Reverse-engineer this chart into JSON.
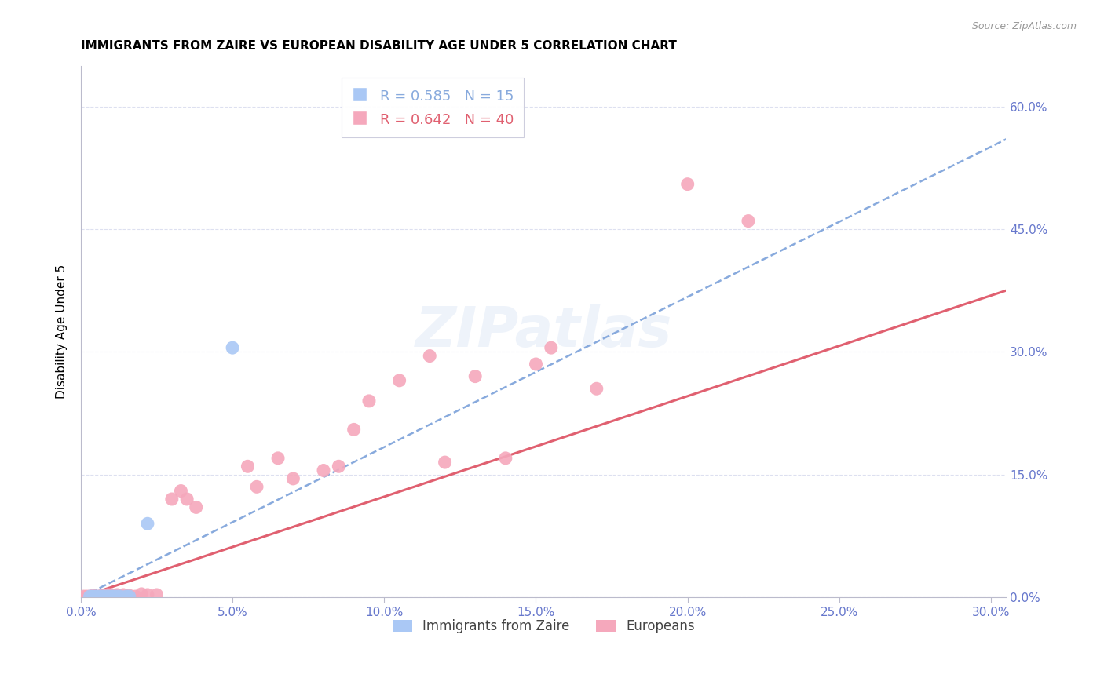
{
  "title": "IMMIGRANTS FROM ZAIRE VS EUROPEAN DISABILITY AGE UNDER 5 CORRELATION CHART",
  "source": "Source: ZipAtlas.com",
  "ylabel": "Disability Age Under 5",
  "xlim": [
    0.0,
    0.305
  ],
  "ylim": [
    0.0,
    0.65
  ],
  "yticks_right": [
    0.0,
    0.15,
    0.3,
    0.45,
    0.6
  ],
  "xticks": [
    0.0,
    0.05,
    0.1,
    0.15,
    0.2,
    0.25,
    0.3
  ],
  "grid_color": "#dde0f0",
  "background_color": "#ffffff",
  "zaire_color": "#aac8f5",
  "european_color": "#f5a8bc",
  "zaire_line_color": "#88aadd",
  "european_line_color": "#e06070",
  "zaire_R": 0.585,
  "zaire_N": 15,
  "european_R": 0.642,
  "european_N": 40,
  "legend_label_zaire": "Immigrants from Zaire",
  "legend_label_european": "Europeans",
  "tick_color": "#6677cc",
  "zaire_points": [
    [
      0.003,
      0.001
    ],
    [
      0.004,
      0.001
    ],
    [
      0.005,
      0.001
    ],
    [
      0.006,
      0.001
    ],
    [
      0.007,
      0.001
    ],
    [
      0.008,
      0.001
    ],
    [
      0.009,
      0.001
    ],
    [
      0.01,
      0.001
    ],
    [
      0.011,
      0.001
    ],
    [
      0.012,
      0.001
    ],
    [
      0.013,
      0.001
    ],
    [
      0.015,
      0.001
    ],
    [
      0.016,
      0.001
    ],
    [
      0.022,
      0.09
    ],
    [
      0.05,
      0.305
    ]
  ],
  "european_points": [
    [
      0.001,
      0.001
    ],
    [
      0.002,
      0.001
    ],
    [
      0.003,
      0.001
    ],
    [
      0.004,
      0.002
    ],
    [
      0.005,
      0.001
    ],
    [
      0.006,
      0.001
    ],
    [
      0.007,
      0.002
    ],
    [
      0.008,
      0.001
    ],
    [
      0.009,
      0.003
    ],
    [
      0.01,
      0.003
    ],
    [
      0.011,
      0.002
    ],
    [
      0.012,
      0.003
    ],
    [
      0.014,
      0.003
    ],
    [
      0.016,
      0.002
    ],
    [
      0.018,
      0.001
    ],
    [
      0.02,
      0.004
    ],
    [
      0.022,
      0.003
    ],
    [
      0.025,
      0.003
    ],
    [
      0.03,
      0.12
    ],
    [
      0.033,
      0.13
    ],
    [
      0.035,
      0.12
    ],
    [
      0.038,
      0.11
    ],
    [
      0.055,
      0.16
    ],
    [
      0.058,
      0.135
    ],
    [
      0.065,
      0.17
    ],
    [
      0.07,
      0.145
    ],
    [
      0.08,
      0.155
    ],
    [
      0.085,
      0.16
    ],
    [
      0.09,
      0.205
    ],
    [
      0.095,
      0.24
    ],
    [
      0.105,
      0.265
    ],
    [
      0.115,
      0.295
    ],
    [
      0.12,
      0.165
    ],
    [
      0.13,
      0.27
    ],
    [
      0.14,
      0.17
    ],
    [
      0.15,
      0.285
    ],
    [
      0.155,
      0.305
    ],
    [
      0.17,
      0.255
    ],
    [
      0.2,
      0.505
    ],
    [
      0.22,
      0.46
    ]
  ],
  "zaire_trend_x": [
    0.0,
    0.305
  ],
  "zaire_trend_y": [
    0.0,
    0.56
  ],
  "european_trend_x": [
    0.0,
    0.305
  ],
  "european_trend_y": [
    0.0,
    0.375
  ]
}
